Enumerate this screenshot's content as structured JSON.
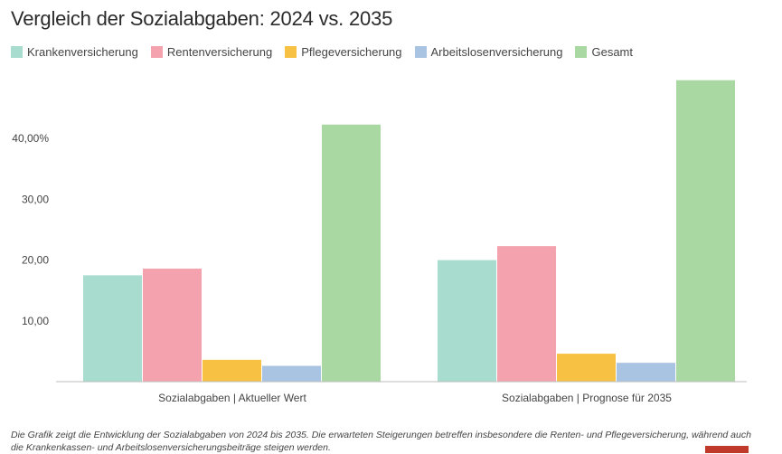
{
  "title": "Vergleich der Sozialabgaben: 2024 vs. 2035",
  "footnote": "Die Grafik zeigt die Entwicklung der Sozialabgaben von 2024 bis 2035. Die erwarteten Steigerungen betreffen insbesondere die Renten- und Pflegeversicherung, während auch die Krankenkassen- und Arbeitslosenversicherungsbeiträge steigen werden.",
  "chart_data": {
    "type": "bar",
    "title": "Vergleich der Sozialabgaben: 2024 vs. 2035",
    "categories": [
      "Sozialabgaben | Aktueller Wert",
      "Sozialabgaben | Prognose für 2035"
    ],
    "series": [
      {
        "name": "Krankenversicherung",
        "color": "#a8dccf",
        "values": [
          17.5,
          20.0
        ]
      },
      {
        "name": "Rentenversicherung",
        "color": "#f4a3ae",
        "values": [
          18.6,
          22.3
        ]
      },
      {
        "name": "Pflegeversicherung",
        "color": "#f7c244",
        "values": [
          3.6,
          4.6
        ]
      },
      {
        "name": "Arbeitslosenversicherung",
        "color": "#a9c4e2",
        "values": [
          2.6,
          3.1
        ]
      },
      {
        "name": "Gesamt",
        "color": "#a9d8a3",
        "values": [
          42.3,
          49.6
        ]
      }
    ],
    "y_ticks": [
      {
        "value": 10,
        "label": "10,00"
      },
      {
        "value": 20,
        "label": "20,00"
      },
      {
        "value": 30,
        "label": "30,00"
      },
      {
        "value": 40,
        "label": "40,00%"
      }
    ],
    "ylim": [
      0,
      50
    ],
    "xlabel": "",
    "ylabel": "",
    "grid": false,
    "legend_position": "top-left"
  }
}
